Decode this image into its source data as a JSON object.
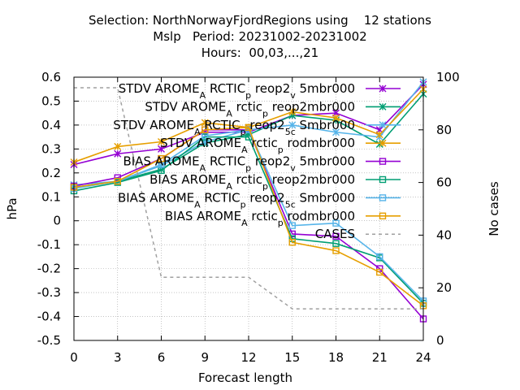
{
  "title_lines": [
    "Selection: NorthNorwayFjordRegions using    12 stations",
    "Mslp   Period: 20231002-20231002",
    "Hours:  00,03,...,21"
  ],
  "chart_data": {
    "type": "line",
    "xlabel": "Forecast length",
    "ylabel": "hPa",
    "y2label": "No cases",
    "x": [
      0,
      3,
      6,
      9,
      12,
      15,
      18,
      21,
      24
    ],
    "xlim": [
      0,
      24
    ],
    "ylim": [
      -0.5,
      0.6
    ],
    "y2lim": [
      0,
      100
    ],
    "x_ticks": [
      "0",
      "3",
      "6",
      "9",
      "12",
      "15",
      "18",
      "21",
      "24"
    ],
    "y_ticks": [
      "-0.5",
      "-0.4",
      "-0.3",
      "-0.2",
      "-0.1",
      "0",
      "0.1",
      "0.2",
      "0.3",
      "0.4",
      "0.5",
      "0.6"
    ],
    "y2_ticks": [
      "0",
      "20",
      "40",
      "60",
      "80",
      "100"
    ],
    "grid": true,
    "legend_position": "top-right",
    "series": [
      {
        "name": "STDV AROME_A RCTIC_p reop2_v 5mbr000",
        "label_html": "STDV AROME<tspan baseline-shift='sub' font-size='11'>A</tspan> RCTIC<tspan baseline-shift='sub' font-size='11'>p</tspan> reop2<tspan baseline-shift='sub' font-size='11'>v</tspan> 5mbr000",
        "color": "#9400d3",
        "marker": "x",
        "axis": "y",
        "values": [
          0.235,
          0.28,
          0.3,
          0.37,
          0.37,
          0.44,
          0.45,
          0.38,
          0.57
        ]
      },
      {
        "name": "STDV AROME_A rctic_p reop2mbr000",
        "label_html": "STDV AROME<tspan baseline-shift='sub' font-size='11'>A</tspan> rctic<tspan baseline-shift='sub' font-size='11'>p</tspan> reop2mbr000",
        "color": "#009e73",
        "marker": "x",
        "axis": "y",
        "values": [
          0.14,
          0.165,
          0.215,
          0.325,
          0.36,
          0.44,
          0.42,
          0.32,
          0.53
        ]
      },
      {
        "name": "STDV AROME_A RCTIC_p reop2_5_c Smbr000",
        "label_html": "STDV AROME<tspan baseline-shift='sub' font-size='11'>A</tspan> RCTIC<tspan baseline-shift='sub' font-size='11'>p</tspan> reop2<tspan baseline-shift='sub' font-size='11'>5</tspan><tspan baseline-shift='sub' font-size='11'>c</tspan> Smbr000",
        "color": "#56b4e9",
        "marker": "x",
        "axis": "y",
        "values": [
          0.15,
          0.165,
          0.23,
          0.33,
          0.38,
          0.4,
          0.37,
          0.35,
          0.58
        ]
      },
      {
        "name": "STDV AROME_A rctic_p rodmbr000",
        "label_html": "STDV AROME<tspan baseline-shift='sub' font-size='11'>A</tspan> rctic<tspan baseline-shift='sub' font-size='11'>p</tspan> rodmbr000",
        "color": "#e69f00",
        "marker": "x",
        "axis": "y",
        "values": [
          0.245,
          0.31,
          0.33,
          0.41,
          0.39,
          0.455,
          0.43,
          0.36,
          0.55
        ]
      },
      {
        "name": "BIAS AROME_A RCTIC_p reop2_v 5mbr000",
        "label_html": "BIAS AROME<tspan baseline-shift='sub' font-size='11'>A</tspan> RCTIC<tspan baseline-shift='sub' font-size='11'>p</tspan> reop2<tspan baseline-shift='sub' font-size='11'>v</tspan> 5mbr000",
        "color": "#9400d3",
        "marker": "square",
        "axis": "y",
        "values": [
          0.145,
          0.18,
          0.26,
          0.38,
          0.38,
          -0.055,
          -0.065,
          -0.2,
          -0.41
        ]
      },
      {
        "name": "BIAS AROME_A rctic_p reop2mbr000",
        "label_html": "BIAS AROME<tspan baseline-shift='sub' font-size='11'>A</tspan> rctic<tspan baseline-shift='sub' font-size='11'>p</tspan> reop2mbr000",
        "color": "#009e73",
        "marker": "square",
        "axis": "y",
        "values": [
          0.125,
          0.16,
          0.21,
          0.35,
          0.35,
          -0.075,
          -0.095,
          -0.155,
          -0.345
        ]
      },
      {
        "name": "BIAS AROME_A RCTIC_p reop2_5_c Smbr000",
        "label_html": "BIAS AROME<tspan baseline-shift='sub' font-size='11'>A</tspan> RCTIC<tspan baseline-shift='sub' font-size='11'>p</tspan> reop2<tspan baseline-shift='sub' font-size='11'>5</tspan><tspan baseline-shift='sub' font-size='11'>c</tspan> Smbr000",
        "color": "#56b4e9",
        "marker": "square",
        "axis": "y",
        "values": [
          0.135,
          0.165,
          0.235,
          0.355,
          0.38,
          -0.02,
          -0.01,
          -0.15,
          -0.335
        ]
      },
      {
        "name": "BIAS AROME_A rctic_p rodmbr000",
        "label_html": "BIAS AROME<tspan baseline-shift='sub' font-size='11'>A</tspan> rctic<tspan baseline-shift='sub' font-size='11'>p</tspan> rodmbr000",
        "color": "#e69f00",
        "marker": "square",
        "axis": "y",
        "values": [
          0.14,
          0.165,
          0.26,
          0.38,
          0.39,
          -0.09,
          -0.125,
          -0.215,
          -0.355
        ]
      },
      {
        "name": "CASES",
        "label_html": "CASES",
        "color": "#a0a0a0",
        "marker": "none",
        "dashed": true,
        "axis": "y2",
        "x": [
          0,
          3,
          6,
          9,
          12,
          15,
          18,
          21,
          24
        ],
        "values": [
          96,
          96,
          24,
          24,
          24,
          12,
          12,
          12,
          12
        ]
      }
    ]
  }
}
